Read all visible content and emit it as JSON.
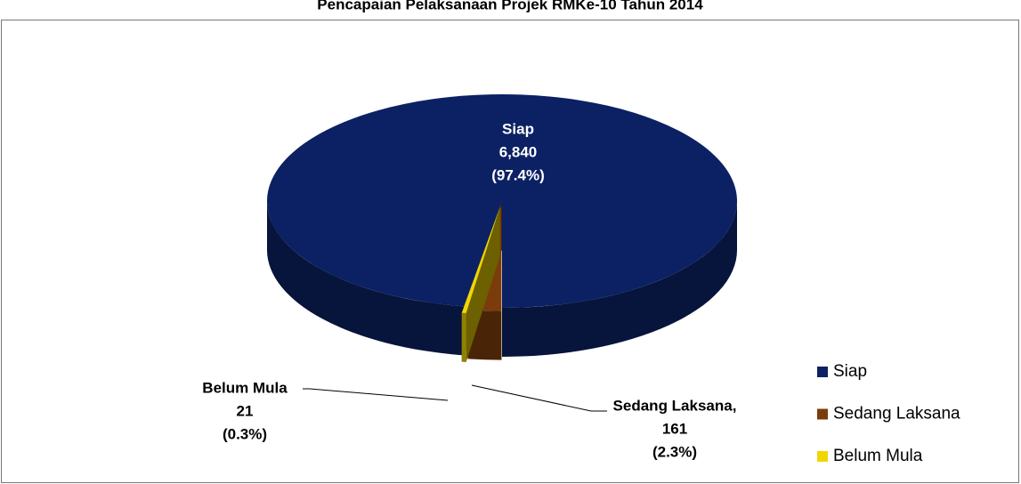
{
  "chart_data": {
    "type": "pie3d",
    "title": "Pencapaian Pelaksanaan Projek RMKe-10 Tahun 2014",
    "categories": [
      "Siap",
      "Sedang Laksana",
      "Belum Mula"
    ],
    "data_label_names": [
      "Siap",
      "Sedang Laksana,",
      "Belum Mula"
    ],
    "values": [
      6840,
      161,
      21
    ],
    "value_labels": [
      "6,840",
      "161",
      "21"
    ],
    "percentages": [
      97.4,
      2.3,
      0.3
    ],
    "percentage_labels": [
      "(97.4%)",
      "(2.3%)",
      "(0.3%)"
    ],
    "colors": [
      "#0b2163",
      "#7b3c0c",
      "#f2d600"
    ],
    "legend": "right"
  }
}
